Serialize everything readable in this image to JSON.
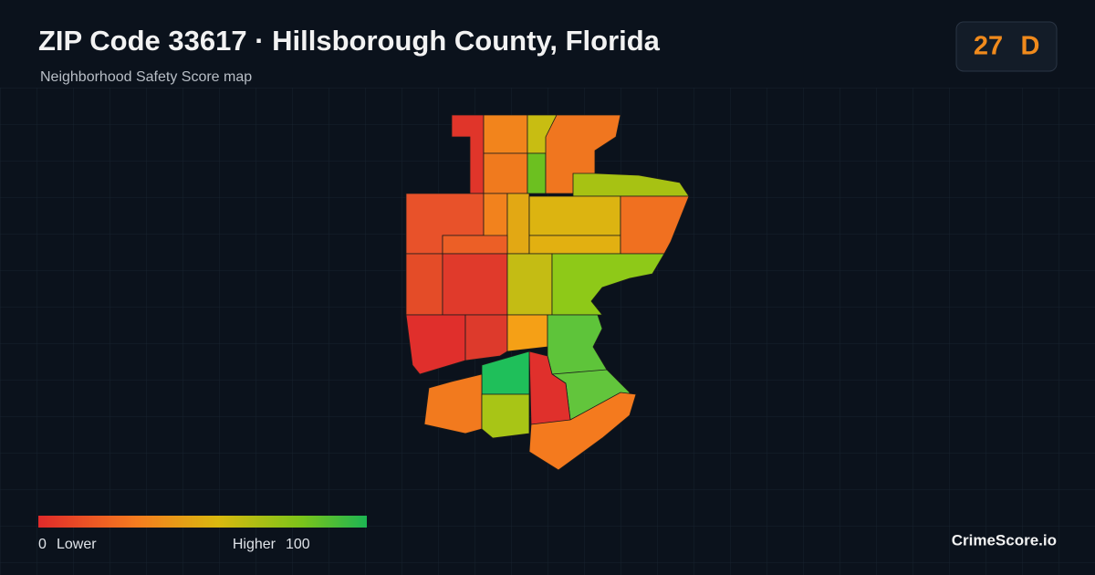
{
  "header": {
    "title": "ZIP Code 33617 · Hillsborough County, Florida",
    "subtitle": "Neighborhood Safety Score map"
  },
  "badge": {
    "score": 27,
    "grade": "D"
  },
  "legend": {
    "min": 0,
    "min_label": "Lower",
    "max_label": "Higher",
    "max": 100
  },
  "brand": "CrimeScore.io"
}
